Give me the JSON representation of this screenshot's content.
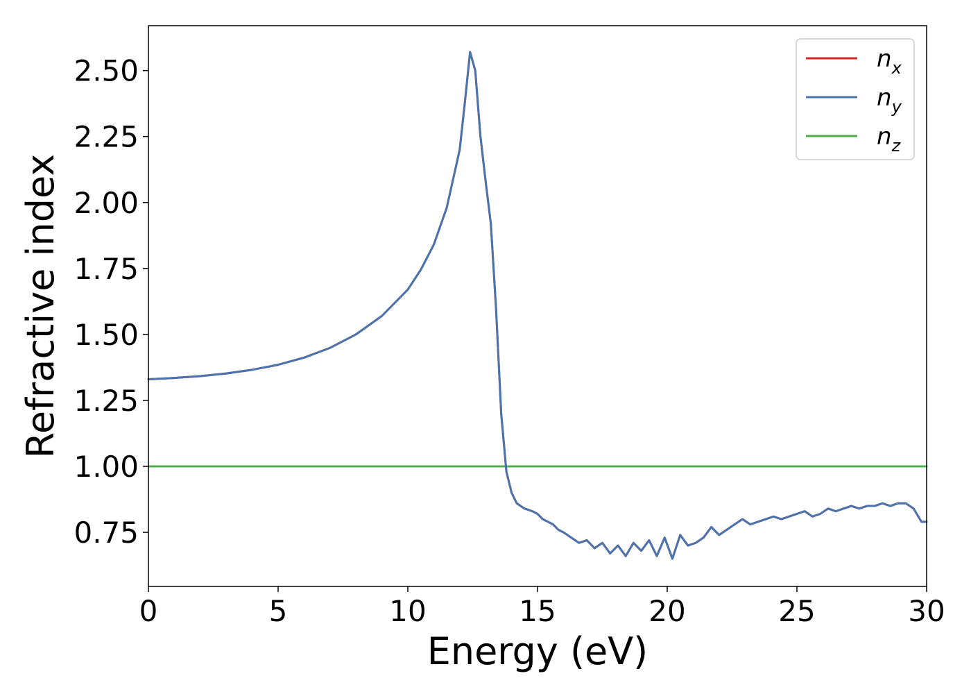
{
  "chart_data": {
    "type": "line",
    "xlabel": "Energy (eV)",
    "ylabel": "Refractive index",
    "xlim": [
      0,
      30
    ],
    "ylim": [
      0.545,
      2.67
    ],
    "xticks": [
      0,
      5,
      10,
      15,
      20,
      25,
      30
    ],
    "xtick_labels": [
      "0",
      "5",
      "10",
      "15",
      "20",
      "25",
      "30"
    ],
    "yticks": [
      0.75,
      1.0,
      1.25,
      1.5,
      1.75,
      2.0,
      2.25,
      2.5
    ],
    "ytick_labels": [
      "0.75",
      "1.00",
      "1.25",
      "1.50",
      "1.75",
      "2.00",
      "2.25",
      "2.50"
    ],
    "grid": false,
    "legend_position": "top-right",
    "series": [
      {
        "name": "n_x",
        "legend_base": "n",
        "legend_sub": "x",
        "color": "#d62728",
        "x": [
          0,
          1,
          2,
          3,
          4,
          5,
          6,
          7,
          8,
          9,
          10,
          10.5,
          11,
          11.5,
          12,
          12.2,
          12.4,
          12.6,
          12.8,
          13.0,
          13.2,
          13.4,
          13.6,
          13.8,
          14.0,
          14.2,
          14.5,
          14.8,
          15.0,
          15.2,
          15.4,
          15.6,
          15.8,
          16.0,
          16.3,
          16.6,
          16.9,
          17.2,
          17.5,
          17.8,
          18.1,
          18.4,
          18.7,
          19.0,
          19.3,
          19.6,
          19.9,
          20.2,
          20.5,
          20.8,
          21.1,
          21.4,
          21.7,
          22.0,
          22.3,
          22.6,
          22.9,
          23.2,
          23.5,
          23.8,
          24.1,
          24.4,
          24.7,
          25.0,
          25.3,
          25.6,
          25.9,
          26.2,
          26.5,
          26.8,
          27.1,
          27.4,
          27.7,
          28.0,
          28.3,
          28.6,
          28.9,
          29.2,
          29.5,
          29.8,
          30.0
        ],
        "values": [
          1.33,
          1.335,
          1.342,
          1.352,
          1.366,
          1.385,
          1.412,
          1.449,
          1.5,
          1.57,
          1.67,
          1.745,
          1.84,
          1.98,
          2.2,
          2.38,
          2.57,
          2.5,
          2.25,
          2.08,
          1.92,
          1.6,
          1.2,
          0.98,
          0.9,
          0.86,
          0.84,
          0.83,
          0.82,
          0.8,
          0.79,
          0.78,
          0.76,
          0.75,
          0.73,
          0.71,
          0.72,
          0.69,
          0.71,
          0.67,
          0.7,
          0.66,
          0.71,
          0.68,
          0.72,
          0.66,
          0.73,
          0.65,
          0.74,
          0.7,
          0.71,
          0.73,
          0.77,
          0.74,
          0.76,
          0.78,
          0.8,
          0.78,
          0.79,
          0.8,
          0.81,
          0.8,
          0.81,
          0.82,
          0.83,
          0.81,
          0.82,
          0.84,
          0.83,
          0.84,
          0.85,
          0.84,
          0.85,
          0.85,
          0.86,
          0.85,
          0.86,
          0.86,
          0.84,
          0.79,
          0.79
        ]
      },
      {
        "name": "n_y",
        "legend_base": "n",
        "legend_sub": "y",
        "color": "#4a74ad",
        "x": [
          0,
          1,
          2,
          3,
          4,
          5,
          6,
          7,
          8,
          9,
          10,
          10.5,
          11,
          11.5,
          12,
          12.2,
          12.4,
          12.6,
          12.8,
          13.0,
          13.2,
          13.4,
          13.6,
          13.8,
          14.0,
          14.2,
          14.5,
          14.8,
          15.0,
          15.2,
          15.4,
          15.6,
          15.8,
          16.0,
          16.3,
          16.6,
          16.9,
          17.2,
          17.5,
          17.8,
          18.1,
          18.4,
          18.7,
          19.0,
          19.3,
          19.6,
          19.9,
          20.2,
          20.5,
          20.8,
          21.1,
          21.4,
          21.7,
          22.0,
          22.3,
          22.6,
          22.9,
          23.2,
          23.5,
          23.8,
          24.1,
          24.4,
          24.7,
          25.0,
          25.3,
          25.6,
          25.9,
          26.2,
          26.5,
          26.8,
          27.1,
          27.4,
          27.7,
          28.0,
          28.3,
          28.6,
          28.9,
          29.2,
          29.5,
          29.8,
          30.0
        ],
        "values": [
          1.33,
          1.335,
          1.342,
          1.352,
          1.366,
          1.385,
          1.412,
          1.449,
          1.5,
          1.57,
          1.67,
          1.745,
          1.84,
          1.98,
          2.2,
          2.38,
          2.57,
          2.5,
          2.25,
          2.08,
          1.92,
          1.6,
          1.2,
          0.98,
          0.9,
          0.86,
          0.84,
          0.83,
          0.82,
          0.8,
          0.79,
          0.78,
          0.76,
          0.75,
          0.73,
          0.71,
          0.72,
          0.69,
          0.71,
          0.67,
          0.7,
          0.66,
          0.71,
          0.68,
          0.72,
          0.66,
          0.73,
          0.65,
          0.74,
          0.7,
          0.71,
          0.73,
          0.77,
          0.74,
          0.76,
          0.78,
          0.8,
          0.78,
          0.79,
          0.8,
          0.81,
          0.8,
          0.81,
          0.82,
          0.83,
          0.81,
          0.82,
          0.84,
          0.83,
          0.84,
          0.85,
          0.84,
          0.85,
          0.85,
          0.86,
          0.85,
          0.86,
          0.86,
          0.84,
          0.79,
          0.79
        ]
      },
      {
        "name": "n_z",
        "legend_base": "n",
        "legend_sub": "z",
        "color": "#4daf4a",
        "x": [
          0,
          30
        ],
        "values": [
          1.0,
          1.0
        ]
      }
    ]
  }
}
